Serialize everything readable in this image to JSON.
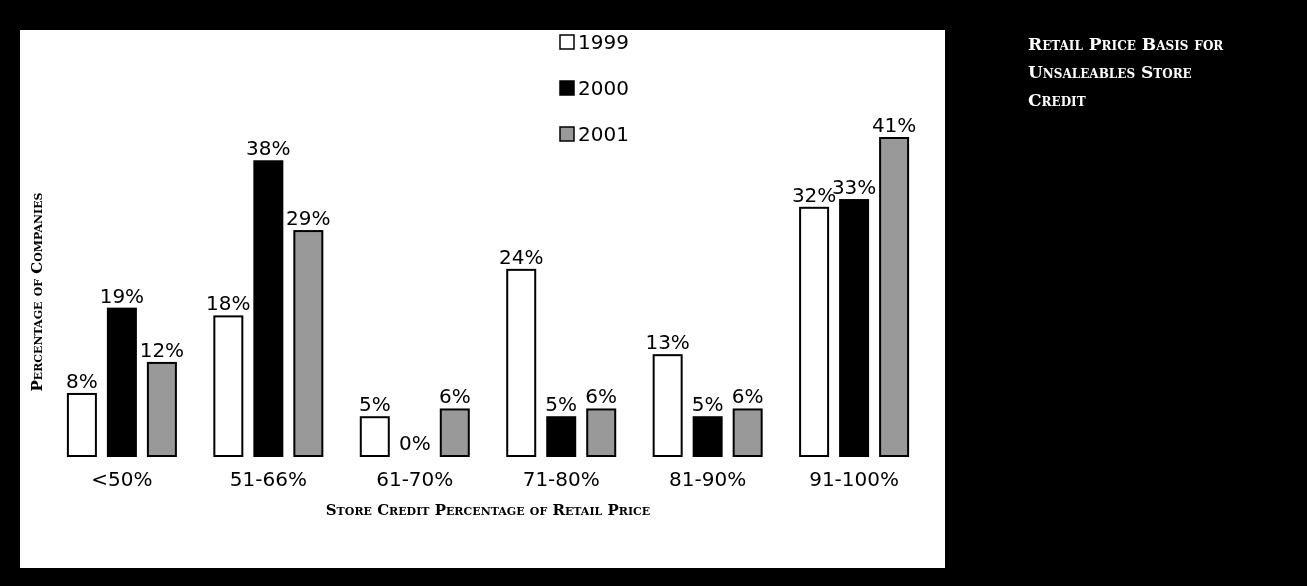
{
  "chart_data": {
    "type": "bar",
    "title": "Retail Price Basis for Unsaleables Store Credit",
    "xlabel": "Store Credit Percentage of Retail Price",
    "ylabel": "Percentage of Companies",
    "categories": [
      "<50%",
      "51-66%",
      "61-70%",
      "71-80%",
      "81-90%",
      "91-100%"
    ],
    "series": [
      {
        "name": "1999",
        "color": "#ffffff",
        "values": [
          8,
          18,
          5,
          24,
          13,
          32
        ],
        "value_labels": [
          "8%",
          "18%",
          "5%",
          "24%",
          "13%",
          "32%"
        ]
      },
      {
        "name": "2000",
        "color": "#000000",
        "values": [
          19,
          38,
          0,
          5,
          5,
          33
        ],
        "value_labels": [
          "19%",
          "38%",
          "0%",
          "5%",
          "5%",
          "33%"
        ]
      },
      {
        "name": "2001",
        "color": "#999999",
        "values": [
          12,
          29,
          6,
          6,
          6,
          41
        ],
        "value_labels": [
          "12%",
          "29%",
          "6%",
          "6%",
          "6%",
          "41%"
        ]
      }
    ],
    "legend": "top"
  }
}
